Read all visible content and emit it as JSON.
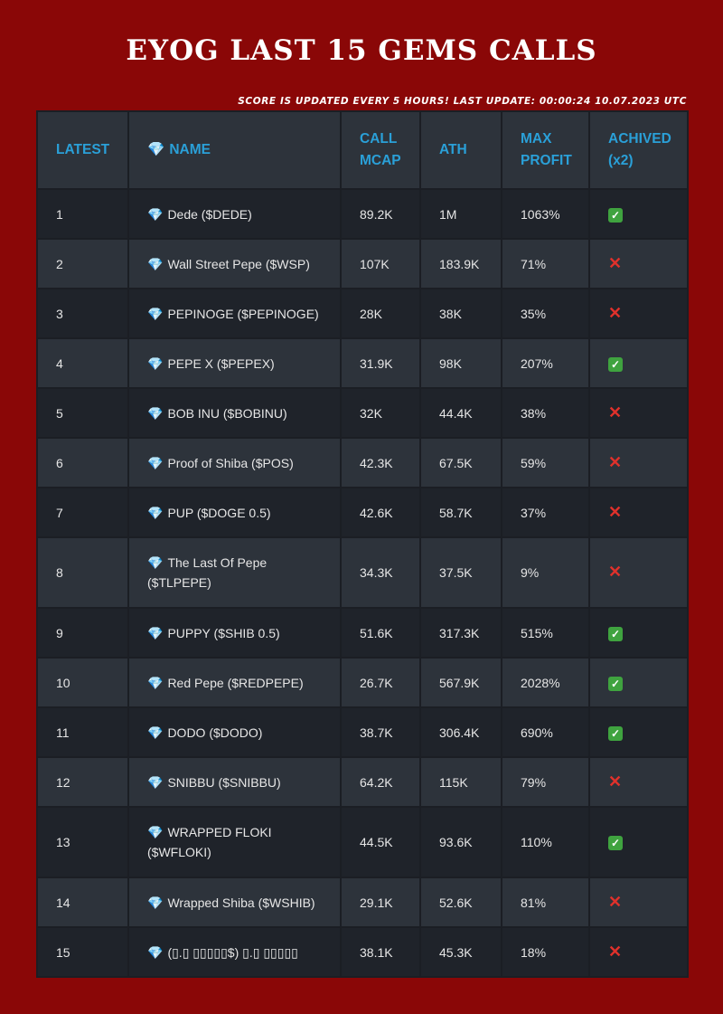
{
  "title": "EYOG LAST 15 GEMS CALLS",
  "update_note": "SCORE IS UPDATED EVERY 5 HOURS! LAST UPDATE: 00:00:24 10.07.2023 UTC",
  "columns": {
    "latest": "LATEST",
    "name_icon": "💎",
    "name": "NAME",
    "call_mcap": "CALL MCAP",
    "ath": "ATH",
    "max_profit": "MAX PROFIT",
    "achived": "ACHIVED (x2)"
  },
  "rows": [
    {
      "latest": "1",
      "name": "Dede ($DEDE)",
      "call_mcap": "89.2K",
      "ath": "1M",
      "max_profit": "1063%",
      "achived": true
    },
    {
      "latest": "2",
      "name": "Wall Street Pepe ($WSP)",
      "call_mcap": "107K",
      "ath": "183.9K",
      "max_profit": "71%",
      "achived": false
    },
    {
      "latest": "3",
      "name": "PEPINOGE ($PEPINOGE)",
      "call_mcap": "28K",
      "ath": "38K",
      "max_profit": "35%",
      "achived": false
    },
    {
      "latest": "4",
      "name": "PEPE X ($PEPEX)",
      "call_mcap": "31.9K",
      "ath": "98K",
      "max_profit": "207%",
      "achived": true
    },
    {
      "latest": "5",
      "name": "BOB INU ($BOBINU)",
      "call_mcap": "32K",
      "ath": "44.4K",
      "max_profit": "38%",
      "achived": false
    },
    {
      "latest": "6",
      "name": "Proof of Shiba ($POS)",
      "call_mcap": "42.3K",
      "ath": "67.5K",
      "max_profit": "59%",
      "achived": false
    },
    {
      "latest": "7",
      "name": "PUP ($DOGE 0.5)",
      "call_mcap": "42.6K",
      "ath": "58.7K",
      "max_profit": "37%",
      "achived": false
    },
    {
      "latest": "8",
      "name": "The Last Of Pepe ($TLPEPE)",
      "call_mcap": "34.3K",
      "ath": "37.5K",
      "max_profit": "9%",
      "achived": false
    },
    {
      "latest": "9",
      "name": "PUPPY ($SHIB 0.5)",
      "call_mcap": "51.6K",
      "ath": "317.3K",
      "max_profit": "515%",
      "achived": true
    },
    {
      "latest": "10",
      "name": "Red Pepe ($REDPEPE)",
      "call_mcap": "26.7K",
      "ath": "567.9K",
      "max_profit": "2028%",
      "achived": true
    },
    {
      "latest": "11",
      "name": "DODO ($DODO)",
      "call_mcap": "38.7K",
      "ath": "306.4K",
      "max_profit": "690%",
      "achived": true
    },
    {
      "latest": "12",
      "name": "SNIBBU ($SNIBBU)",
      "call_mcap": "64.2K",
      "ath": "115K",
      "max_profit": "79%",
      "achived": false
    },
    {
      "latest": "13",
      "name": "WRAPPED FLOKI ($WFLOKI)",
      "call_mcap": "44.5K",
      "ath": "93.6K",
      "max_profit": "110%",
      "achived": true
    },
    {
      "latest": "14",
      "name": "Wrapped Shiba ($WSHIB)",
      "call_mcap": "29.1K",
      "ath": "52.6K",
      "max_profit": "81%",
      "achived": false
    },
    {
      "latest": "15",
      "name": "(▯.▯ ▯▯▯▯▯$) ▯.▯ ▯▯▯▯▯",
      "call_mcap": "38.1K",
      "ath": "45.3K",
      "max_profit": "18%",
      "achived": false
    }
  ],
  "marks": {
    "yes": "✓",
    "no": "✕"
  },
  "colors": {
    "background": "#8a0707",
    "header_text": "#2aa0d8",
    "yes": "#3fa33f",
    "no": "#e0312b"
  }
}
